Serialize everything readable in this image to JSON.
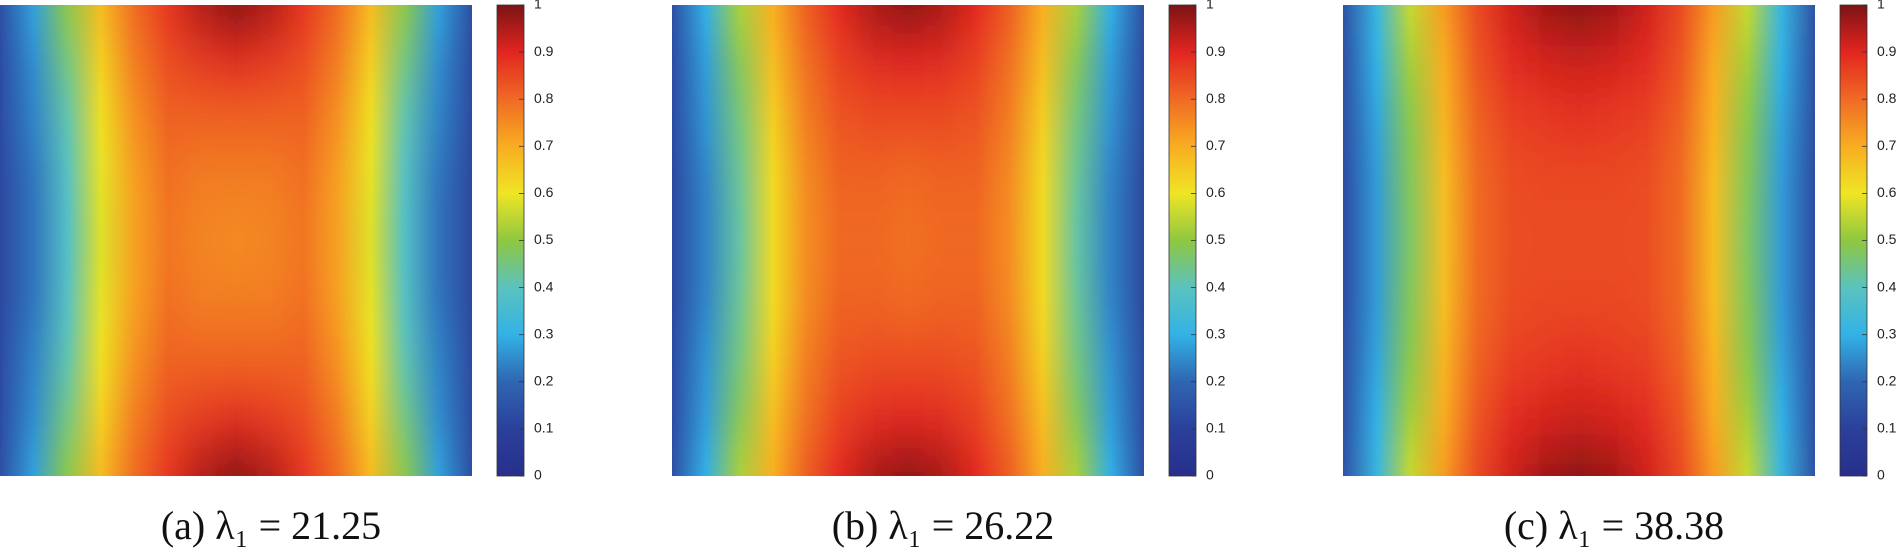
{
  "chart_data": [
    {
      "type": "heatmap",
      "caption": "(a) λ₁ = 21.25",
      "clim": [
        0,
        1
      ],
      "cticks": [
        0,
        0.1,
        0.2,
        0.3,
        0.4,
        0.5,
        0.6,
        0.7,
        0.8,
        0.9,
        1
      ],
      "colormap": [
        "#27308a",
        "#2b409b",
        "#2f66b1",
        "#32b2e6",
        "#5bc2bf",
        "#8fc741",
        "#efe524",
        "#f8ad22",
        "#f06a24",
        "#e22520",
        "#7c1315"
      ],
      "z": [
        [
          0.14,
          0.28,
          0.5,
          0.68,
          0.8,
          0.88,
          0.95,
          0.99,
          0.95,
          0.88,
          0.8,
          0.68,
          0.5,
          0.28,
          0.14
        ],
        [
          0.13,
          0.25,
          0.45,
          0.64,
          0.77,
          0.84,
          0.87,
          0.89,
          0.87,
          0.84,
          0.77,
          0.64,
          0.45,
          0.25,
          0.13
        ],
        [
          0.13,
          0.24,
          0.41,
          0.61,
          0.74,
          0.81,
          0.81,
          0.81,
          0.81,
          0.81,
          0.74,
          0.61,
          0.41,
          0.24,
          0.13
        ],
        [
          0.12,
          0.22,
          0.39,
          0.59,
          0.72,
          0.79,
          0.77,
          0.77,
          0.77,
          0.79,
          0.72,
          0.59,
          0.39,
          0.22,
          0.12
        ],
        [
          0.12,
          0.22,
          0.38,
          0.58,
          0.72,
          0.78,
          0.76,
          0.75,
          0.76,
          0.78,
          0.72,
          0.58,
          0.38,
          0.22,
          0.12
        ],
        [
          0.12,
          0.22,
          0.39,
          0.59,
          0.72,
          0.79,
          0.77,
          0.77,
          0.77,
          0.79,
          0.72,
          0.59,
          0.39,
          0.22,
          0.12
        ],
        [
          0.13,
          0.24,
          0.41,
          0.61,
          0.74,
          0.81,
          0.81,
          0.81,
          0.81,
          0.81,
          0.74,
          0.61,
          0.41,
          0.24,
          0.13
        ],
        [
          0.13,
          0.25,
          0.45,
          0.64,
          0.77,
          0.84,
          0.87,
          0.89,
          0.87,
          0.84,
          0.77,
          0.64,
          0.45,
          0.25,
          0.13
        ],
        [
          0.14,
          0.28,
          0.5,
          0.68,
          0.8,
          0.88,
          0.95,
          0.99,
          0.95,
          0.88,
          0.8,
          0.68,
          0.5,
          0.28,
          0.14
        ]
      ]
    },
    {
      "type": "heatmap",
      "caption": "(b) λ₁ = 26.22",
      "clim": [
        0,
        1
      ],
      "cticks": [
        0,
        0.1,
        0.2,
        0.3,
        0.4,
        0.5,
        0.6,
        0.7,
        0.8,
        0.9,
        1
      ],
      "colormap": [
        "#27308a",
        "#2b409b",
        "#2f66b1",
        "#32b2e6",
        "#5bc2bf",
        "#8fc741",
        "#efe524",
        "#f8ad22",
        "#f06a24",
        "#e22520",
        "#7c1315"
      ],
      "z": [
        [
          0.14,
          0.3,
          0.53,
          0.7,
          0.82,
          0.9,
          0.96,
          0.99,
          0.96,
          0.9,
          0.82,
          0.7,
          0.53,
          0.3,
          0.14
        ],
        [
          0.13,
          0.27,
          0.48,
          0.67,
          0.79,
          0.86,
          0.89,
          0.9,
          0.89,
          0.86,
          0.79,
          0.67,
          0.48,
          0.27,
          0.13
        ],
        [
          0.13,
          0.26,
          0.45,
          0.64,
          0.77,
          0.83,
          0.84,
          0.84,
          0.84,
          0.83,
          0.77,
          0.64,
          0.45,
          0.26,
          0.13
        ],
        [
          0.12,
          0.24,
          0.43,
          0.62,
          0.75,
          0.81,
          0.81,
          0.8,
          0.81,
          0.81,
          0.75,
          0.62,
          0.43,
          0.24,
          0.12
        ],
        [
          0.12,
          0.24,
          0.42,
          0.62,
          0.75,
          0.8,
          0.8,
          0.79,
          0.8,
          0.8,
          0.75,
          0.62,
          0.42,
          0.24,
          0.12
        ],
        [
          0.12,
          0.24,
          0.43,
          0.62,
          0.75,
          0.81,
          0.81,
          0.8,
          0.81,
          0.81,
          0.75,
          0.62,
          0.43,
          0.24,
          0.12
        ],
        [
          0.13,
          0.26,
          0.45,
          0.64,
          0.77,
          0.83,
          0.84,
          0.84,
          0.84,
          0.83,
          0.77,
          0.64,
          0.45,
          0.26,
          0.13
        ],
        [
          0.13,
          0.27,
          0.48,
          0.67,
          0.79,
          0.86,
          0.89,
          0.9,
          0.89,
          0.86,
          0.79,
          0.67,
          0.48,
          0.27,
          0.13
        ],
        [
          0.14,
          0.3,
          0.53,
          0.7,
          0.82,
          0.9,
          0.96,
          0.99,
          0.96,
          0.9,
          0.82,
          0.7,
          0.53,
          0.3,
          0.14
        ]
      ]
    },
    {
      "type": "heatmap",
      "caption": "(c) λ₁ = 38.38",
      "clim": [
        0,
        1
      ],
      "cticks": [
        0,
        0.1,
        0.2,
        0.3,
        0.4,
        0.5,
        0.6,
        0.7,
        0.8,
        0.9,
        1
      ],
      "colormap": [
        "#27308a",
        "#2b409b",
        "#2f66b1",
        "#32b2e6",
        "#5bc2bf",
        "#8fc741",
        "#efe524",
        "#f8ad22",
        "#f06a24",
        "#e22520",
        "#7c1315"
      ],
      "z": [
        [
          0.15,
          0.32,
          0.56,
          0.73,
          0.85,
          0.92,
          0.97,
          0.99,
          0.97,
          0.92,
          0.85,
          0.73,
          0.56,
          0.32,
          0.15
        ],
        [
          0.14,
          0.3,
          0.52,
          0.7,
          0.83,
          0.89,
          0.91,
          0.92,
          0.91,
          0.89,
          0.83,
          0.7,
          0.52,
          0.3,
          0.14
        ],
        [
          0.14,
          0.28,
          0.49,
          0.69,
          0.81,
          0.86,
          0.87,
          0.88,
          0.87,
          0.86,
          0.81,
          0.69,
          0.49,
          0.28,
          0.14
        ],
        [
          0.13,
          0.27,
          0.48,
          0.67,
          0.8,
          0.84,
          0.85,
          0.85,
          0.85,
          0.84,
          0.8,
          0.67,
          0.48,
          0.27,
          0.13
        ],
        [
          0.13,
          0.27,
          0.47,
          0.67,
          0.8,
          0.84,
          0.84,
          0.84,
          0.84,
          0.84,
          0.8,
          0.67,
          0.47,
          0.27,
          0.13
        ],
        [
          0.13,
          0.27,
          0.48,
          0.67,
          0.8,
          0.84,
          0.85,
          0.85,
          0.85,
          0.84,
          0.8,
          0.67,
          0.48,
          0.27,
          0.13
        ],
        [
          0.14,
          0.28,
          0.49,
          0.69,
          0.81,
          0.86,
          0.87,
          0.88,
          0.87,
          0.86,
          0.81,
          0.69,
          0.49,
          0.28,
          0.14
        ],
        [
          0.14,
          0.3,
          0.52,
          0.7,
          0.83,
          0.89,
          0.91,
          0.92,
          0.91,
          0.89,
          0.83,
          0.7,
          0.52,
          0.3,
          0.14
        ],
        [
          0.15,
          0.32,
          0.56,
          0.73,
          0.85,
          0.92,
          0.97,
          0.99,
          0.97,
          0.92,
          0.85,
          0.73,
          0.56,
          0.32,
          0.15
        ]
      ]
    }
  ]
}
